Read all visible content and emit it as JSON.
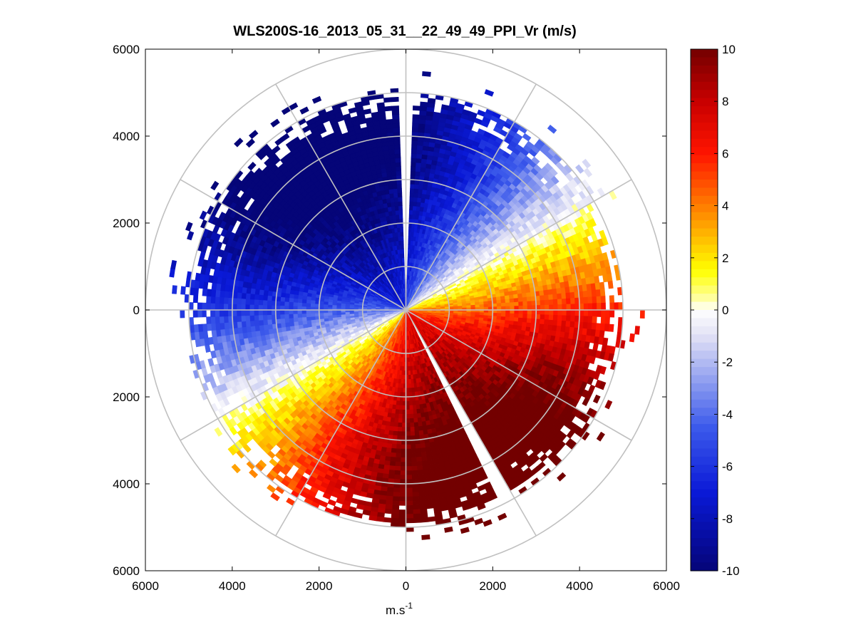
{
  "chart_data": {
    "type": "heatmap",
    "subtype": "polar-ppi",
    "title": "WLS200S-16_2013_05_31__22_49_49_PPI_Vr (m/s)",
    "xlabel_base": "m.s",
    "xlabel_exp": "-1",
    "xlim": [
      -6000,
      6000
    ],
    "ylim": [
      -6000,
      6000
    ],
    "x_tick_labels": [
      "6000",
      "4000",
      "2000",
      "0",
      "2000",
      "4000",
      "6000"
    ],
    "y_tick_labels": [
      "6000",
      "4000",
      "2000",
      "0",
      "2000",
      "4000",
      "6000"
    ],
    "x_ticks": [
      -6000,
      -4000,
      -2000,
      0,
      2000,
      4000,
      6000
    ],
    "y_ticks": [
      6000,
      4000,
      2000,
      0,
      -2000,
      -4000,
      -6000
    ],
    "range_rings": [
      1000,
      2000,
      3000,
      4000,
      5000,
      6000
    ],
    "spoke_step_deg": 30,
    "max_range": 5000,
    "gap_beam": {
      "from_deg": 150,
      "to_deg": 154
    },
    "zero_line_bearing_deg": 60,
    "colorbar": {
      "min": -10,
      "max": 10,
      "ticks": [
        10,
        8,
        6,
        4,
        2,
        0,
        -2,
        -4,
        -6,
        -8,
        -10
      ],
      "tick_labels": [
        "10",
        "8",
        "6",
        "4",
        "2",
        "0",
        "-2",
        "-4",
        "-6",
        "-8",
        "-10"
      ],
      "colormap": "blue-white-yellow-red"
    },
    "colors": {
      "negative_max": "#0a0a82",
      "negative": "#1e32dc",
      "zero": "#ffffff",
      "low_positive": "#ffff00",
      "mid_positive": "#ff8000",
      "positive": "#ff0000",
      "positive_max": "#7a0000",
      "grid": "#c0c0c0"
    }
  }
}
